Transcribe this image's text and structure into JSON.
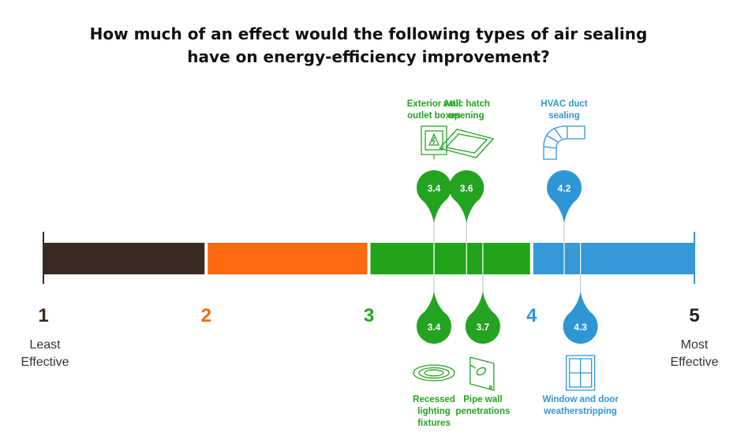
{
  "chart_data": {
    "type": "scatter",
    "title_lines": [
      "How much of an effect would the following types of air sealing",
      "have on energy-efficiency improvement?"
    ],
    "scale": {
      "min": 1,
      "max": 5,
      "ticks": [
        {
          "value": 1,
          "label": "1",
          "color": "#3a2a22"
        },
        {
          "value": 2,
          "label": "2",
          "color": "#f26a10"
        },
        {
          "value": 3,
          "label": "3",
          "color": "#23a31f"
        },
        {
          "value": 4,
          "label": "4",
          "color": "#2f96d6"
        },
        {
          "value": 5,
          "label": "5",
          "color": "#222222"
        }
      ],
      "segments": [
        {
          "from": 1,
          "to": 2,
          "color": "#3a2a22"
        },
        {
          "from": 2,
          "to": 3,
          "color": "#fd6a0f"
        },
        {
          "from": 3,
          "to": 4,
          "color": "#20a318"
        },
        {
          "from": 4,
          "to": 5,
          "color": "#3499d9"
        }
      ],
      "low_label": [
        "Least",
        "Effective"
      ],
      "high_label": [
        "Most",
        "Effective"
      ]
    },
    "points_above": [
      {
        "label_lines": [
          "Exterior wall",
          "outlet boxes"
        ],
        "value": 3.4,
        "value_label": "3.4",
        "icon": "outlet-box-icon",
        "color": "#23a31f"
      },
      {
        "label_lines": [
          "Attic hatch",
          "opening"
        ],
        "value": 3.6,
        "value_label": "3.6",
        "icon": "attic-hatch-icon",
        "color": "#23a31f"
      },
      {
        "label_lines": [
          "HVAC duct",
          "sealing"
        ],
        "value": 4.2,
        "value_label": "4.2",
        "icon": "duct-icon",
        "color": "#2f96d6"
      }
    ],
    "points_below": [
      {
        "label_lines": [
          "Recessed",
          "lighting",
          "fixtures"
        ],
        "value": 3.4,
        "value_label": "3.4",
        "icon": "recessed-light-icon",
        "color": "#23a31f"
      },
      {
        "label_lines": [
          "Pipe wall",
          "penetrations"
        ],
        "value": 3.7,
        "value_label": "3.7",
        "icon": "pipe-wall-icon",
        "color": "#23a31f"
      },
      {
        "label_lines": [
          "Window and door",
          "weatherstripping"
        ],
        "value": 4.3,
        "value_label": "4.3",
        "icon": "window-icon",
        "color": "#2f96d6"
      }
    ]
  }
}
